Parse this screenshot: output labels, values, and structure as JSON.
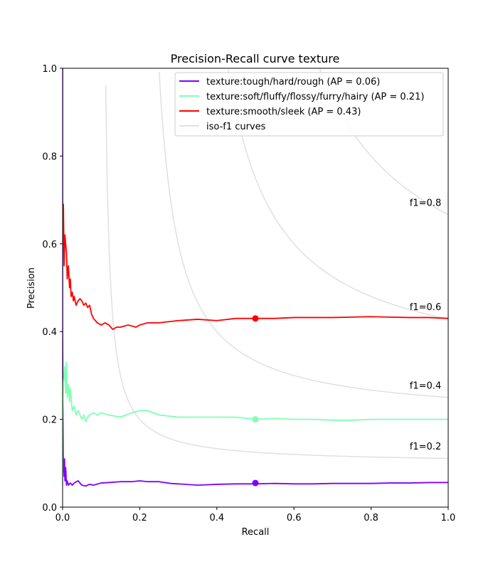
{
  "chart_data": {
    "type": "line",
    "title": "Precision-Recall curve texture",
    "xlabel": "Recall",
    "ylabel": "Precision",
    "xlim": [
      0.0,
      1.0
    ],
    "ylim": [
      0.0,
      1.0
    ],
    "xticks": [
      "0.0",
      "0.2",
      "0.4",
      "0.6",
      "0.8",
      "1.0"
    ],
    "yticks": [
      "0.0",
      "0.2",
      "0.4",
      "0.6",
      "0.8",
      "1.0"
    ],
    "grid": false,
    "legend_position": "top-right",
    "legend": [
      {
        "label": "texture:tough/hard/rough (AP = 0.06)",
        "color": "#8000ff"
      },
      {
        "label": "texture:soft/fluffy/flossy/furry/hairy (AP = 0.21)",
        "color": "#80ffb4"
      },
      {
        "label": "texture:smooth/sleek (AP = 0.43)",
        "color": "#ff0000"
      },
      {
        "label": "iso-f1 curves",
        "color": "#d9d9d9"
      }
    ],
    "iso_f1": [
      {
        "f1": 0.2,
        "label": "f1=0.2"
      },
      {
        "f1": 0.4,
        "label": "f1=0.4"
      },
      {
        "f1": 0.6,
        "label": "f1=0.6"
      },
      {
        "f1": 0.8,
        "label": "f1=0.8"
      }
    ],
    "series": [
      {
        "color": "#8000ff",
        "marker": [
          0.5,
          0.055
        ],
        "x": [
          0.0,
          0.0,
          0.001,
          0.002,
          0.003,
          0.004,
          0.005,
          0.006,
          0.008,
          0.01,
          0.012,
          0.015,
          0.02,
          0.025,
          0.03,
          0.04,
          0.05,
          0.06,
          0.07,
          0.08,
          0.1,
          0.12,
          0.15,
          0.18,
          0.2,
          0.22,
          0.25,
          0.28,
          0.3,
          0.35,
          0.4,
          0.45,
          0.5,
          0.55,
          0.6,
          0.65,
          0.7,
          0.75,
          0.8,
          0.85,
          0.9,
          0.95,
          1.0
        ],
        "y": [
          1.0,
          0.4,
          0.2,
          0.08,
          0.1,
          0.07,
          0.11,
          0.06,
          0.09,
          0.05,
          0.06,
          0.05,
          0.055,
          0.05,
          0.055,
          0.06,
          0.05,
          0.048,
          0.052,
          0.05,
          0.055,
          0.056,
          0.058,
          0.058,
          0.06,
          0.058,
          0.058,
          0.054,
          0.053,
          0.05,
          0.052,
          0.053,
          0.053,
          0.054,
          0.053,
          0.053,
          0.054,
          0.054,
          0.054,
          0.055,
          0.055,
          0.056,
          0.056
        ]
      },
      {
        "color": "#80ffb4",
        "marker": [
          0.5,
          0.2
        ],
        "x": [
          0.0,
          0.0,
          0.002,
          0.004,
          0.006,
          0.008,
          0.01,
          0.012,
          0.015,
          0.018,
          0.02,
          0.025,
          0.03,
          0.035,
          0.04,
          0.045,
          0.05,
          0.055,
          0.06,
          0.065,
          0.07,
          0.08,
          0.09,
          0.1,
          0.12,
          0.15,
          0.18,
          0.2,
          0.22,
          0.25,
          0.3,
          0.35,
          0.4,
          0.45,
          0.5,
          0.55,
          0.6,
          0.65,
          0.7,
          0.75,
          0.8,
          0.85,
          0.9,
          0.95,
          1.0
        ],
        "y": [
          0.05,
          0.2,
          0.28,
          0.3,
          0.32,
          0.26,
          0.33,
          0.25,
          0.28,
          0.24,
          0.27,
          0.22,
          0.23,
          0.21,
          0.22,
          0.21,
          0.2,
          0.21,
          0.195,
          0.205,
          0.21,
          0.215,
          0.21,
          0.215,
          0.21,
          0.205,
          0.215,
          0.22,
          0.22,
          0.21,
          0.205,
          0.205,
          0.205,
          0.205,
          0.2,
          0.202,
          0.2,
          0.2,
          0.198,
          0.198,
          0.2,
          0.2,
          0.2,
          0.2,
          0.2
        ]
      },
      {
        "color": "#ff0000",
        "marker": [
          0.5,
          0.43
        ],
        "x": [
          0.0,
          0.002,
          0.004,
          0.006,
          0.008,
          0.01,
          0.012,
          0.015,
          0.018,
          0.02,
          0.022,
          0.025,
          0.028,
          0.03,
          0.035,
          0.04,
          0.045,
          0.05,
          0.055,
          0.06,
          0.065,
          0.07,
          0.075,
          0.08,
          0.09,
          0.1,
          0.11,
          0.12,
          0.13,
          0.14,
          0.15,
          0.17,
          0.19,
          0.2,
          0.22,
          0.25,
          0.3,
          0.35,
          0.4,
          0.45,
          0.5,
          0.55,
          0.6,
          0.65,
          0.7,
          0.75,
          0.8,
          0.85,
          0.9,
          0.95,
          1.0
        ],
        "y": [
          0.6,
          0.69,
          0.55,
          0.62,
          0.6,
          0.58,
          0.52,
          0.55,
          0.5,
          0.52,
          0.48,
          0.49,
          0.47,
          0.48,
          0.46,
          0.47,
          0.475,
          0.47,
          0.46,
          0.465,
          0.455,
          0.46,
          0.44,
          0.43,
          0.42,
          0.415,
          0.42,
          0.415,
          0.405,
          0.41,
          0.41,
          0.415,
          0.41,
          0.415,
          0.42,
          0.42,
          0.425,
          0.428,
          0.425,
          0.43,
          0.43,
          0.43,
          0.432,
          0.432,
          0.432,
          0.433,
          0.434,
          0.433,
          0.432,
          0.432,
          0.43
        ]
      }
    ]
  }
}
